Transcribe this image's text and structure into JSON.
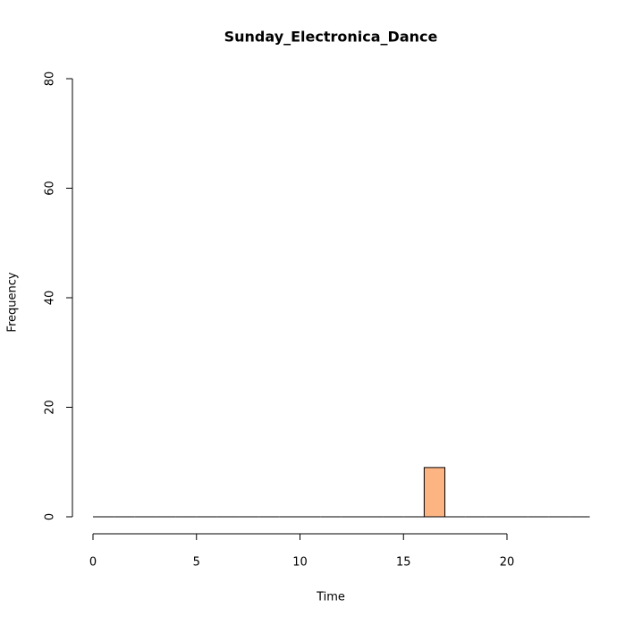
{
  "chart_data": {
    "type": "histogram",
    "title": "Sunday_Electronica_Dance",
    "xlabel": "Time",
    "ylabel": "Frequency",
    "bins": [
      0,
      1,
      2,
      3,
      4,
      5,
      6,
      7,
      8,
      9,
      10,
      11,
      12,
      13,
      14,
      15,
      16,
      17,
      18,
      19,
      20,
      21,
      22,
      23,
      24
    ],
    "values": [
      0,
      0,
      0,
      0,
      0,
      0,
      0,
      0,
      0,
      0,
      0,
      0,
      0,
      0,
      0,
      0,
      9,
      0,
      0,
      0,
      0,
      0,
      0,
      0
    ],
    "color": "#fdb483",
    "xlim": [
      0,
      24
    ],
    "xticks": [
      0,
      5,
      10,
      15,
      20
    ],
    "ylim": [
      0,
      80
    ],
    "yticks": [
      0,
      20,
      40,
      60,
      80
    ]
  }
}
